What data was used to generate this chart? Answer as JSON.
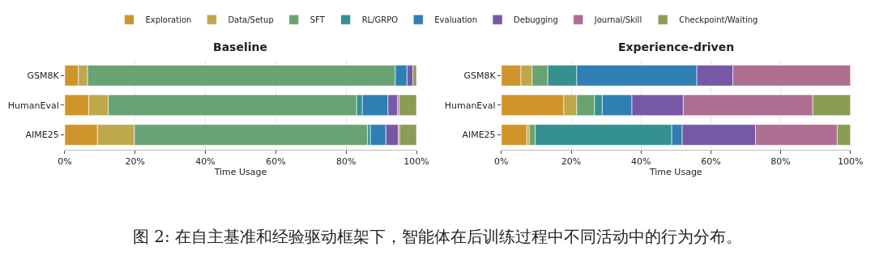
{
  "chart_data": [
    {
      "type": "bar",
      "orientation": "horizontal",
      "stacked": true,
      "title": "Baseline",
      "xlabel": "Time Usage",
      "categories": [
        "GSM8K",
        "HumanEval",
        "AIME25"
      ],
      "xlim": [
        0,
        100
      ],
      "xticks": [
        {
          "value": 0,
          "label": "0%"
        },
        {
          "value": 20,
          "label": "20%"
        },
        {
          "value": 40,
          "label": "40%"
        },
        {
          "value": 60,
          "label": "60%"
        },
        {
          "value": 80,
          "label": "80%"
        },
        {
          "value": 100,
          "label": "100%"
        }
      ],
      "grid": "x",
      "legend": "top",
      "annotations": [
        "图 2: 在自主基准和经验驱动框架下，智能体在后训练过程中不同活动中的行为分布。"
      ],
      "series": [
        {
          "name": "Exploration",
          "color": "#d0952a",
          "values": [
            3.9,
            6.8,
            9.3
          ]
        },
        {
          "name": "Data/Setup",
          "color": "#bfa84c",
          "values": [
            2.6,
            5.6,
            10.5
          ]
        },
        {
          "name": "SFT",
          "color": "#6aa373",
          "values": [
            87.5,
            70.6,
            66.3
          ]
        },
        {
          "name": "RL/GRPO",
          "color": "#35918f",
          "values": [
            null,
            1.6,
            0.8
          ]
        },
        {
          "name": "Evaluation",
          "color": "#2f7fb5",
          "values": [
            3.3,
            7.3,
            4.4
          ]
        },
        {
          "name": "Debugging",
          "color": "#7558a6",
          "values": [
            1.7,
            2.7,
            3.5
          ]
        },
        {
          "name": "Journal/Skill",
          "color": "#ad6e92",
          "values": [
            null,
            0.5,
            0.4
          ]
        },
        {
          "name": "Checkpoint/Waiting",
          "color": "#8c9c55",
          "values": [
            1.0,
            4.9,
            4.8
          ]
        }
      ]
    },
    {
      "type": "bar",
      "orientation": "horizontal",
      "stacked": true,
      "title": "Experience-driven",
      "xlabel": "Time Usage",
      "categories": [
        "GSM8K",
        "HumanEval",
        "AIME25"
      ],
      "xlim": [
        0,
        100
      ],
      "xticks": [
        {
          "value": 0,
          "label": "0%"
        },
        {
          "value": 20,
          "label": "20%"
        },
        {
          "value": 40,
          "label": "40%"
        },
        {
          "value": 60,
          "label": "60%"
        },
        {
          "value": 80,
          "label": "80%"
        },
        {
          "value": 100,
          "label": "100%"
        }
      ],
      "grid": "x",
      "legend": "top",
      "series": [
        {
          "name": "Exploration",
          "color": "#d0952a",
          "values": [
            5.6,
            17.9,
            7.3
          ]
        },
        {
          "name": "Data/Setup",
          "color": "#bfa84c",
          "values": [
            3.2,
            3.7,
            0.7
          ]
        },
        {
          "name": "SFT",
          "color": "#6aa373",
          "values": [
            4.5,
            5.1,
            1.7
          ]
        },
        {
          "name": "RL/GRPO",
          "color": "#35918f",
          "values": [
            8.3,
            2.2,
            39.1
          ]
        },
        {
          "name": "Evaluation",
          "color": "#2f7fb5",
          "values": [
            34.4,
            8.5,
            3.0
          ]
        },
        {
          "name": "Debugging",
          "color": "#7558a6",
          "values": [
            10.3,
            14.7,
            21.0
          ]
        },
        {
          "name": "Journal/Skill",
          "color": "#ad6e92",
          "values": [
            33.7,
            37.1,
            23.4
          ]
        },
        {
          "name": "Checkpoint/Waiting",
          "color": "#8c9c55",
          "values": [
            null,
            10.8,
            3.8
          ]
        }
      ]
    }
  ]
}
